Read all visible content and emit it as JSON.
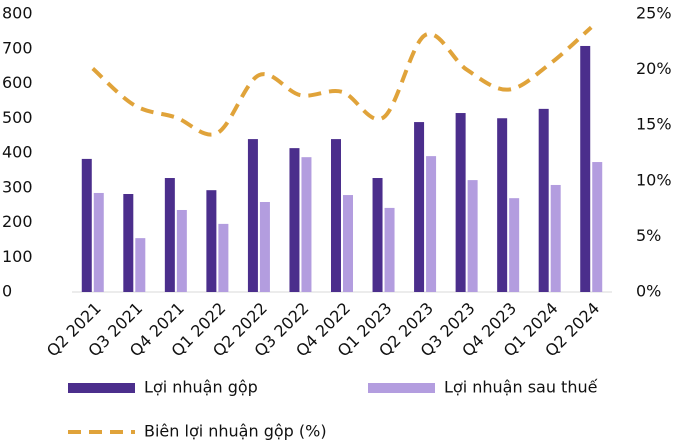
{
  "chart_data": {
    "type": "bar-line",
    "categories": [
      "Q2 2021",
      "Q3 2021",
      "Q4 2021",
      "Q1 2022",
      "Q2 2022",
      "Q3 2022",
      "Q4 2022",
      "Q1 2023",
      "Q2 2023",
      "Q3 2023",
      "Q4 2023",
      "Q1 2024",
      "Q2 2024"
    ],
    "series": [
      {
        "name": "Lợi nhuận gộp",
        "type": "bar",
        "color": "#4b2e8c",
        "values": [
          383,
          282,
          328,
          293,
          440,
          414,
          440,
          328,
          489,
          515,
          500,
          527,
          708
        ]
      },
      {
        "name": "Lợi nhuận sau thuế",
        "type": "bar",
        "color": "#b39ddf",
        "values": [
          285,
          155,
          236,
          196,
          259,
          388,
          279,
          242,
          391,
          322,
          270,
          308,
          374
        ]
      },
      {
        "name": "Biên lợi nhuận gộp (%)",
        "type": "line",
        "axis": "y2",
        "color": "#e0a33a",
        "values": [
          20.1,
          16.8,
          15.7,
          14.3,
          19.5,
          17.7,
          18.0,
          15.7,
          23.1,
          20.0,
          18.2,
          20.5,
          23.8
        ]
      }
    ],
    "ylim": [
      0,
      800
    ],
    "yticks": [
      0,
      100,
      200,
      300,
      400,
      500,
      600,
      700,
      800
    ],
    "y2lim": [
      0,
      25
    ],
    "y2ticks": [
      {
        "value": 0,
        "label": "0%"
      },
      {
        "value": 5,
        "label": "5%"
      },
      {
        "value": 10,
        "label": "10%"
      },
      {
        "value": 15,
        "label": "15%"
      },
      {
        "value": 20,
        "label": "20%"
      },
      {
        "value": 25,
        "label": "25%"
      }
    ],
    "grid": false
  }
}
